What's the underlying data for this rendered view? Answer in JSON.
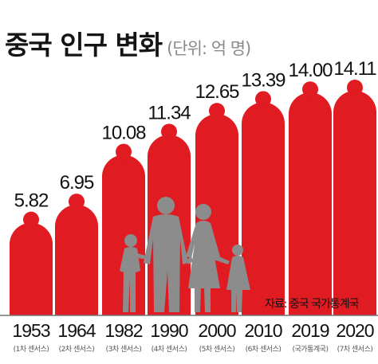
{
  "header": {
    "title": "중국 인구 변화",
    "unit": "(단위: 억 명)"
  },
  "source": "자료: 중국 국가통계국",
  "colors": {
    "bar": "#e01b22",
    "silhouette": "#8c8c8c",
    "baseline": "#777777",
    "text": "#111111"
  },
  "chart_data": {
    "type": "bar",
    "title": "중국 인구 변화",
    "subtitle": "(단위: 억 명)",
    "categories": [
      "1953",
      "1964",
      "1982",
      "1990",
      "2000",
      "2010",
      "2019",
      "2020"
    ],
    "category_sublabels": [
      "(1차 센서스)",
      "(2차 센서스)",
      "(3차 센서스)",
      "(4차 센서스)",
      "(5차 센서스)",
      "(6차 센서스)",
      "(국가통계국)",
      "(7차 센서스)"
    ],
    "values": [
      5.82,
      6.95,
      10.08,
      11.34,
      12.65,
      13.39,
      14.0,
      14.11
    ],
    "value_labels": [
      "5.82",
      "6.95",
      "10.08",
      "11.34",
      "12.65",
      "13.39",
      "14.00",
      "14.11"
    ],
    "ylim": [
      0,
      14.11
    ],
    "grid": false,
    "legend": "none"
  }
}
